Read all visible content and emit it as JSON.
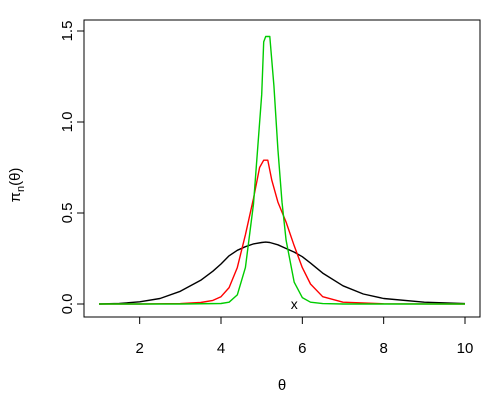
{
  "chart_data": {
    "type": "line",
    "xlabel": "θ",
    "ylabel": "π",
    "ylabel_sub": "n",
    "ylabel_arg": "(θ)",
    "xlim": [
      1,
      10
    ],
    "ylim": [
      0,
      1.5
    ],
    "grid": false,
    "legend": "none",
    "x_ticks": [
      2,
      4,
      6,
      8,
      10
    ],
    "x_tick_labels": [
      "2",
      "4",
      "6",
      "8",
      "10"
    ],
    "y_ticks": [
      0,
      0.5,
      1,
      1.5
    ],
    "y_tick_labels": [
      "0.0",
      "0.5",
      "1.0",
      "1.5"
    ],
    "annotation": {
      "text": "x",
      "x": 5.8,
      "y": 0
    },
    "series": [
      {
        "color": "#000000",
        "x": [
          1.0,
          1.5,
          2.0,
          2.5,
          3.0,
          3.5,
          3.8,
          4.0,
          4.2,
          4.4,
          4.6,
          4.8,
          5.0,
          5.1,
          5.2,
          5.4,
          5.6,
          5.8,
          6.0,
          6.2,
          6.5,
          7.0,
          7.5,
          8.0,
          9.0,
          10.0
        ],
        "y": [
          0.0,
          0.003,
          0.012,
          0.03,
          0.07,
          0.13,
          0.18,
          0.22,
          0.265,
          0.295,
          0.315,
          0.33,
          0.338,
          0.34,
          0.338,
          0.325,
          0.305,
          0.285,
          0.26,
          0.225,
          0.17,
          0.1,
          0.055,
          0.03,
          0.01,
          0.002
        ]
      },
      {
        "color": "#ff0000",
        "x": [
          1.0,
          2.0,
          3.0,
          3.5,
          3.8,
          4.0,
          4.2,
          4.4,
          4.6,
          4.8,
          4.95,
          5.05,
          5.15,
          5.25,
          5.4,
          5.6,
          5.8,
          6.0,
          6.2,
          6.5,
          7.0,
          8.0,
          10.0
        ],
        "y": [
          0.0,
          0.0,
          0.002,
          0.008,
          0.02,
          0.04,
          0.09,
          0.2,
          0.38,
          0.58,
          0.75,
          0.79,
          0.79,
          0.68,
          0.56,
          0.45,
          0.32,
          0.2,
          0.11,
          0.04,
          0.01,
          0.001,
          0.0
        ]
      },
      {
        "color": "#00cc00",
        "x": [
          1.0,
          3.0,
          4.0,
          4.2,
          4.4,
          4.6,
          4.8,
          4.9,
          5.0,
          5.05,
          5.1,
          5.2,
          5.3,
          5.4,
          5.5,
          5.6,
          5.8,
          6.0,
          6.2,
          6.5,
          7.0,
          10.0
        ],
        "y": [
          0.0,
          0.0,
          0.003,
          0.01,
          0.05,
          0.2,
          0.55,
          0.85,
          1.15,
          1.44,
          1.47,
          1.47,
          1.2,
          0.85,
          0.56,
          0.35,
          0.12,
          0.035,
          0.01,
          0.002,
          0.0,
          0.0
        ]
      }
    ]
  }
}
